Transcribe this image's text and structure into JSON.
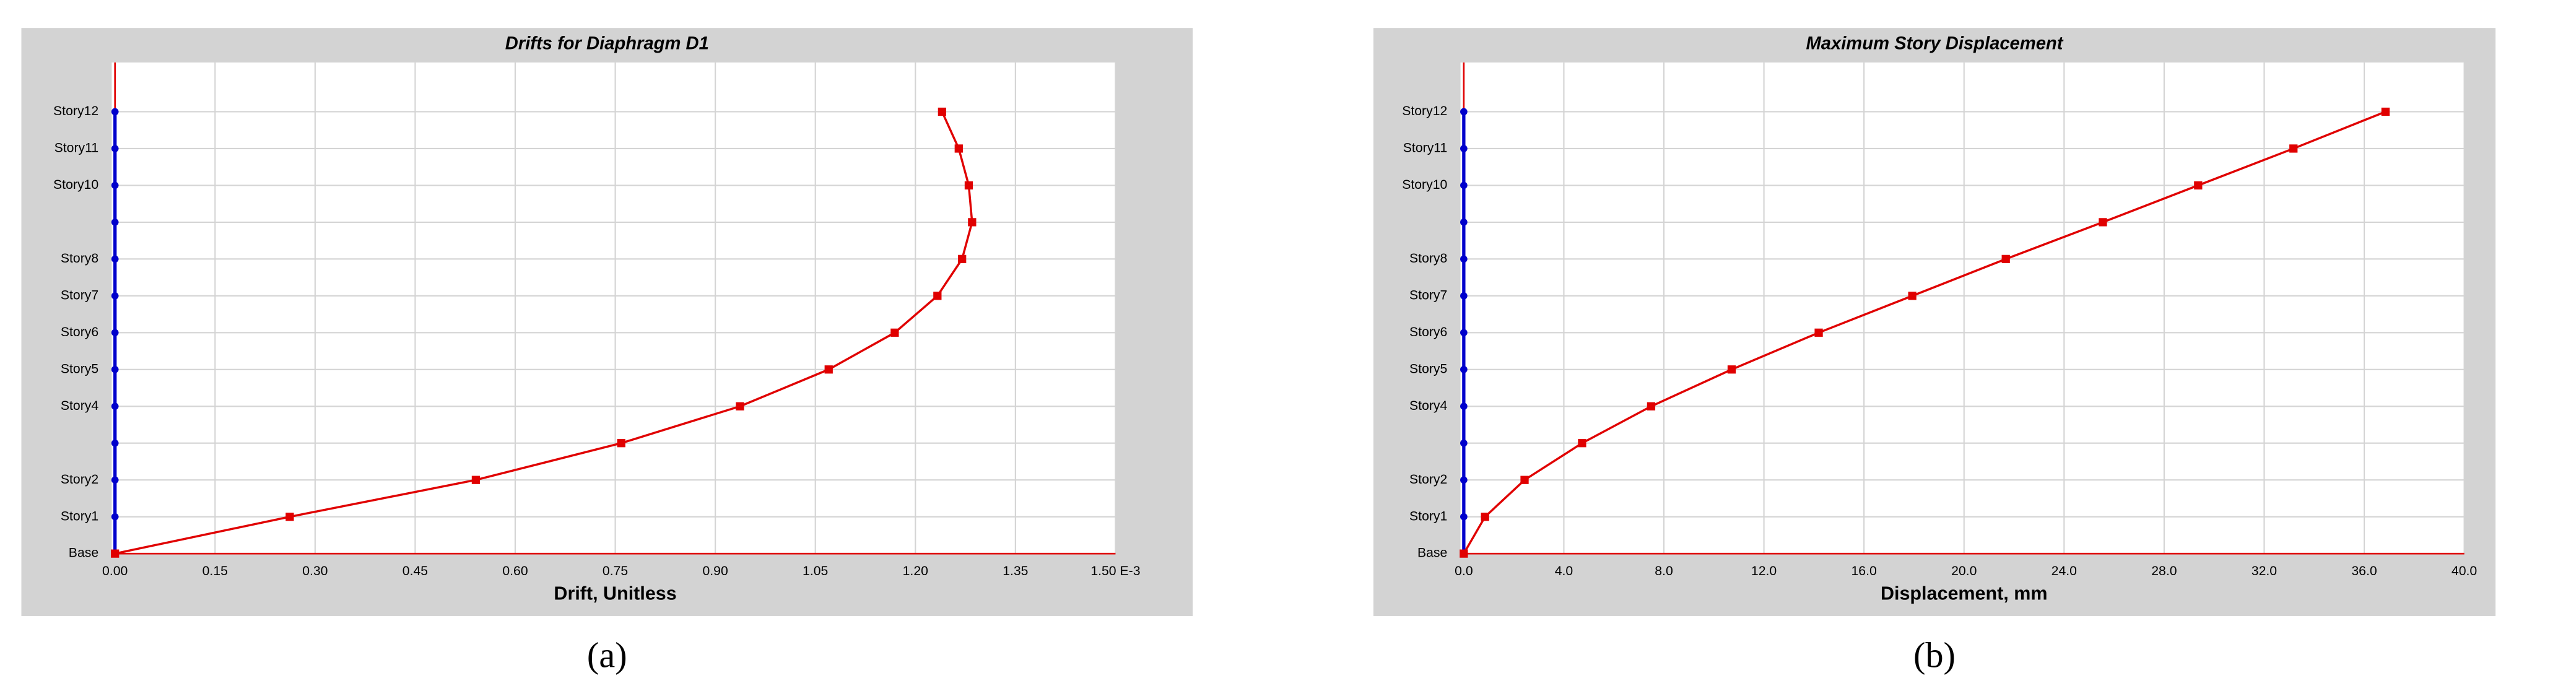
{
  "chart_data": [
    {
      "type": "line",
      "title": "Drifts for Diaphragm D1",
      "x_label": "Drift, Unitless",
      "caption": "(a)",
      "categories": [
        "Base",
        "Story1",
        "Story2",
        null,
        "Story4",
        "Story5",
        "Story6",
        "Story7",
        "Story8",
        null,
        "Story10",
        "Story11",
        "Story12"
      ],
      "values": [
        0,
        0.262,
        0.541,
        0.759,
        0.937,
        1.07,
        1.169,
        1.233,
        1.27,
        1.285,
        1.28,
        1.265,
        1.24
      ],
      "color": "#e00000",
      "axis_color": "#0000cc",
      "xlim": [
        0,
        1.5
      ],
      "xticks": [
        {
          "value": 0,
          "label": "0.00"
        },
        {
          "value": 0.15,
          "label": "0.15"
        },
        {
          "value": 0.3,
          "label": "0.30"
        },
        {
          "value": 0.45,
          "label": "0.45"
        },
        {
          "value": 0.6,
          "label": "0.60"
        },
        {
          "value": 0.75,
          "label": "0.75"
        },
        {
          "value": 0.9,
          "label": "0.90"
        },
        {
          "value": 1.05,
          "label": "1.05"
        },
        {
          "value": 1.2,
          "label": "1.20"
        },
        {
          "value": 1.35,
          "label": "1.35"
        },
        {
          "value": 1.5,
          "label": "1.50 E-3"
        }
      ],
      "grid": true
    },
    {
      "type": "line",
      "title": "Maximum Story Displacement",
      "x_label": "Displacement, mm",
      "caption": "(b)",
      "categories": [
        "Base",
        "Story1",
        "Story2",
        null,
        "Story4",
        "Story5",
        "Story6",
        "Story7",
        "Story8",
        null,
        "Story10",
        "Story11",
        "Story12"
      ],
      "values": [
        0,
        0.85,
        2.43,
        4.73,
        7.49,
        10.71,
        14.19,
        17.93,
        21.67,
        25.55,
        29.36,
        33.17,
        36.85
      ],
      "color": "#e00000",
      "axis_color": "#0000cc",
      "xlim": [
        0,
        40
      ],
      "xticks": [
        {
          "value": 0,
          "label": "0.0"
        },
        {
          "value": 4,
          "label": "4.0"
        },
        {
          "value": 8,
          "label": "8.0"
        },
        {
          "value": 12,
          "label": "12.0"
        },
        {
          "value": 16,
          "label": "16.0"
        },
        {
          "value": 20,
          "label": "20.0"
        },
        {
          "value": 24,
          "label": "24.0"
        },
        {
          "value": 28,
          "label": "28.0"
        },
        {
          "value": 32,
          "label": "32.0"
        },
        {
          "value": 36,
          "label": "36.0"
        },
        {
          "value": 40,
          "label": "40.0"
        }
      ],
      "grid": true
    }
  ]
}
